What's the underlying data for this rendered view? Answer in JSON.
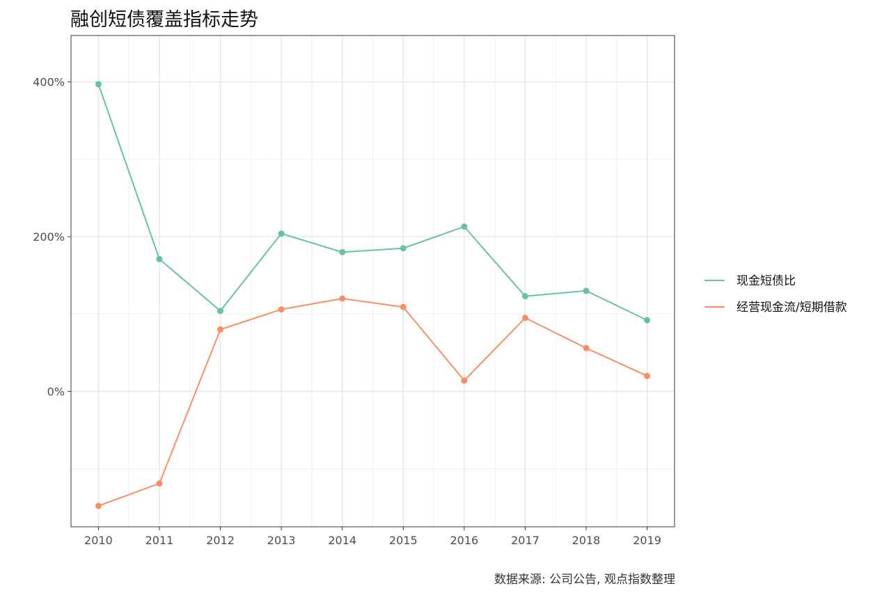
{
  "chart_data": {
    "type": "line",
    "title": "融创短债覆盖指标走势",
    "caption": "数据来源: 公司公告, 观点指数整理",
    "x": [
      "2010",
      "2011",
      "2012",
      "2013",
      "2014",
      "2015",
      "2016",
      "2017",
      "2018",
      "2019"
    ],
    "y_ticks": [
      {
        "value": 0,
        "label": "0%"
      },
      {
        "value": 200,
        "label": "200%"
      },
      {
        "value": 400,
        "label": "400%"
      }
    ],
    "ylim": [
      -175,
      460
    ],
    "y_unit": "%",
    "grid": true,
    "legend_position": "right",
    "series": [
      {
        "name": "现金短债比",
        "color": "#66c2a5",
        "values": [
          397,
          171,
          104,
          204,
          180,
          185,
          213,
          123,
          130,
          92
        ]
      },
      {
        "name": "经营现金流/短期借款",
        "color": "#fc8d62",
        "values": [
          -148,
          -119,
          80,
          106,
          120,
          109,
          14,
          95,
          56,
          20
        ]
      }
    ]
  }
}
